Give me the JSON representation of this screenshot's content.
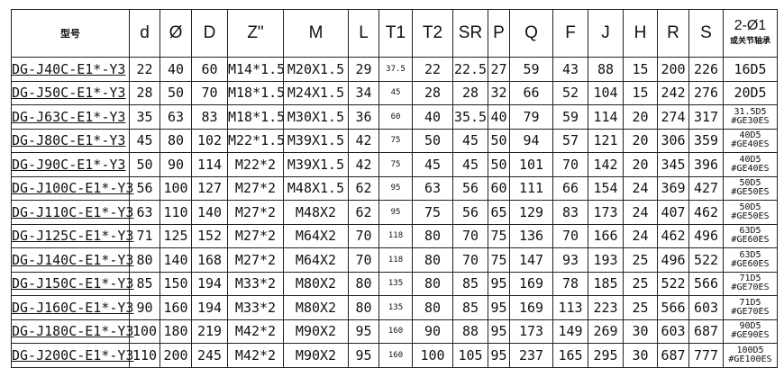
{
  "headers": [
    "型号",
    "d",
    "Ø",
    "D",
    "Z\"",
    "M",
    "L",
    "T1",
    "T2",
    "SR",
    "P",
    "Q",
    "F",
    "J",
    "H",
    "R",
    "S"
  ],
  "last_header": {
    "line1": "2-Ø1",
    "line2": "或关节轴承"
  },
  "rows": [
    {
      "cells": [
        "DG-J40C-E1*-Y3",
        "22",
        "40",
        "60",
        "M14*1.5",
        "M20X1.5",
        "29",
        "37.5",
        "22",
        "22.5",
        "27",
        "59",
        "43",
        "88",
        "15",
        "200",
        "226"
      ],
      "bearing": [
        "16D5"
      ]
    },
    {
      "cells": [
        "DG-J50C-E1*-Y3",
        "28",
        "50",
        "70",
        "M18*1.5",
        "M24X1.5",
        "34",
        "45",
        "28",
        "28",
        "32",
        "66",
        "52",
        "104",
        "15",
        "242",
        "276"
      ],
      "bearing": [
        "20D5"
      ]
    },
    {
      "cells": [
        "DG-J63C-E1*-Y3",
        "35",
        "63",
        "83",
        "M18*1.5",
        "M30X1.5",
        "36",
        "60",
        "40",
        "35.5",
        "40",
        "79",
        "59",
        "114",
        "20",
        "274",
        "317"
      ],
      "bearing": [
        "31.5D5",
        "#GE30ES"
      ]
    },
    {
      "cells": [
        "DG-J80C-E1*-Y3",
        "45",
        "80",
        "102",
        "M22*1.5",
        "M39X1.5",
        "42",
        "75",
        "50",
        "45",
        "50",
        "94",
        "57",
        "121",
        "20",
        "306",
        "359"
      ],
      "bearing": [
        "40D5",
        "#GE40ES"
      ]
    },
    {
      "cells": [
        "DG-J90C-E1*-Y3",
        "50",
        "90",
        "114",
        "M22*2",
        "M39X1.5",
        "42",
        "75",
        "45",
        "45",
        "50",
        "101",
        "70",
        "142",
        "20",
        "345",
        "396"
      ],
      "bearing": [
        "40D5",
        "#GE40ES"
      ]
    },
    {
      "cells": [
        "DG-J100C-E1*-Y3",
        "56",
        "100",
        "127",
        "M27*2",
        "M48X1.5",
        "62",
        "95",
        "63",
        "56",
        "60",
        "111",
        "66",
        "154",
        "24",
        "369",
        "427"
      ],
      "bearing": [
        "50D5",
        "#GE50ES"
      ]
    },
    {
      "cells": [
        "DG-J110C-E1*-Y3",
        "63",
        "110",
        "140",
        "M27*2",
        "M48X2",
        "62",
        "95",
        "75",
        "56",
        "65",
        "129",
        "83",
        "173",
        "24",
        "407",
        "462"
      ],
      "bearing": [
        "50D5",
        "#GE50ES"
      ]
    },
    {
      "cells": [
        "DG-J125C-E1*-Y3",
        "71",
        "125",
        "152",
        "M27*2",
        "M64X2",
        "70",
        "118",
        "80",
        "70",
        "75",
        "136",
        "70",
        "166",
        "24",
        "462",
        "496"
      ],
      "bearing": [
        "63D5",
        "#GE60ES"
      ]
    },
    {
      "cells": [
        "DG-J140C-E1*-Y3",
        "80",
        "140",
        "168",
        "M27*2",
        "M64X2",
        "70",
        "118",
        "80",
        "70",
        "75",
        "147",
        "93",
        "193",
        "25",
        "496",
        "522"
      ],
      "bearing": [
        "63D5",
        "#GE60ES"
      ]
    },
    {
      "cells": [
        "DG-J150C-E1*-Y3",
        "85",
        "150",
        "194",
        "M33*2",
        "M80X2",
        "80",
        "135",
        "80",
        "85",
        "95",
        "169",
        "78",
        "185",
        "25",
        "522",
        "566"
      ],
      "bearing": [
        "71D5",
        "#GE70ES"
      ]
    },
    {
      "cells": [
        "DG-J160C-E1*-Y3",
        "90",
        "160",
        "194",
        "M33*2",
        "M80X2",
        "80",
        "135",
        "80",
        "85",
        "95",
        "169",
        "113",
        "223",
        "25",
        "566",
        "603"
      ],
      "bearing": [
        "71D5",
        "#GE70ES"
      ]
    },
    {
      "cells": [
        "DG-J180C-E1*-Y3",
        "100",
        "180",
        "219",
        "M42*2",
        "M90X2",
        "95",
        "160",
        "90",
        "88",
        "95",
        "173",
        "149",
        "269",
        "30",
        "603",
        "687"
      ],
      "bearing": [
        "90D5",
        "#GE90ES"
      ]
    },
    {
      "cells": [
        "DG-J200C-E1*-Y3",
        "110",
        "200",
        "245",
        "M42*2",
        "M90X2",
        "95",
        "160",
        "100",
        "105",
        "95",
        "237",
        "165",
        "295",
        "30",
        "687",
        "777"
      ],
      "bearing": [
        "100D5",
        "#GE100ES"
      ]
    }
  ]
}
